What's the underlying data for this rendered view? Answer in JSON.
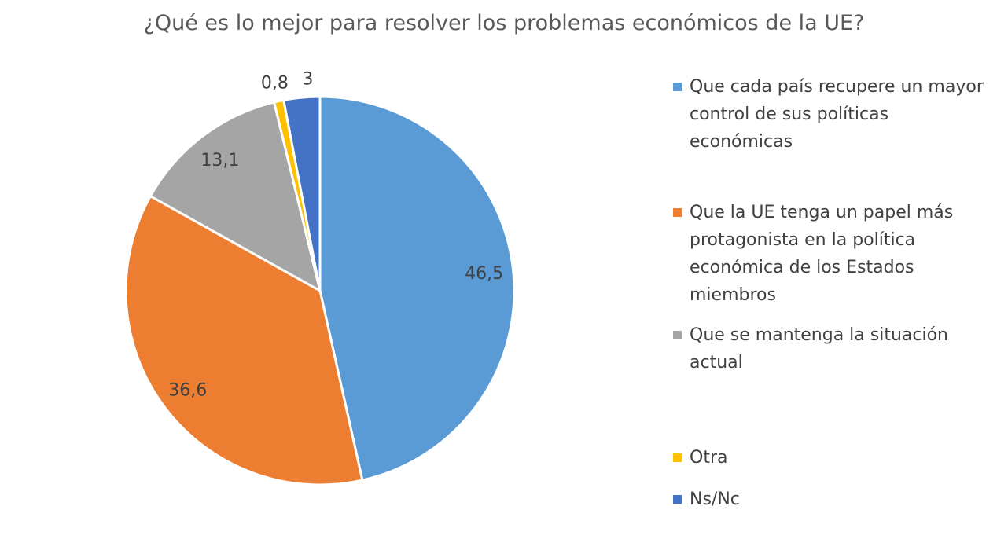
{
  "chart_data": {
    "type": "pie",
    "title": "¿Qué es lo mejor para resolver los problemas económicos de la UE?",
    "categories": [
      "Que cada país recupere un mayor control de sus políticas económicas",
      "Que la UE tenga un papel más protagonista en la política económica de los Estados miembros",
      "Que se mantenga la situación actual",
      "Otra",
      "Ns/Nc"
    ],
    "values": [
      46.5,
      36.6,
      13.1,
      0.8,
      3
    ],
    "data_labels": [
      "46,5",
      "36,6",
      "13,1",
      "0,8",
      "3"
    ],
    "colors": [
      "#5B9BD5",
      "#ED7D31",
      "#A5A5A5",
      "#FFC000",
      "#4472C4"
    ],
    "start": "top, clockwise",
    "legend_position": "right"
  }
}
